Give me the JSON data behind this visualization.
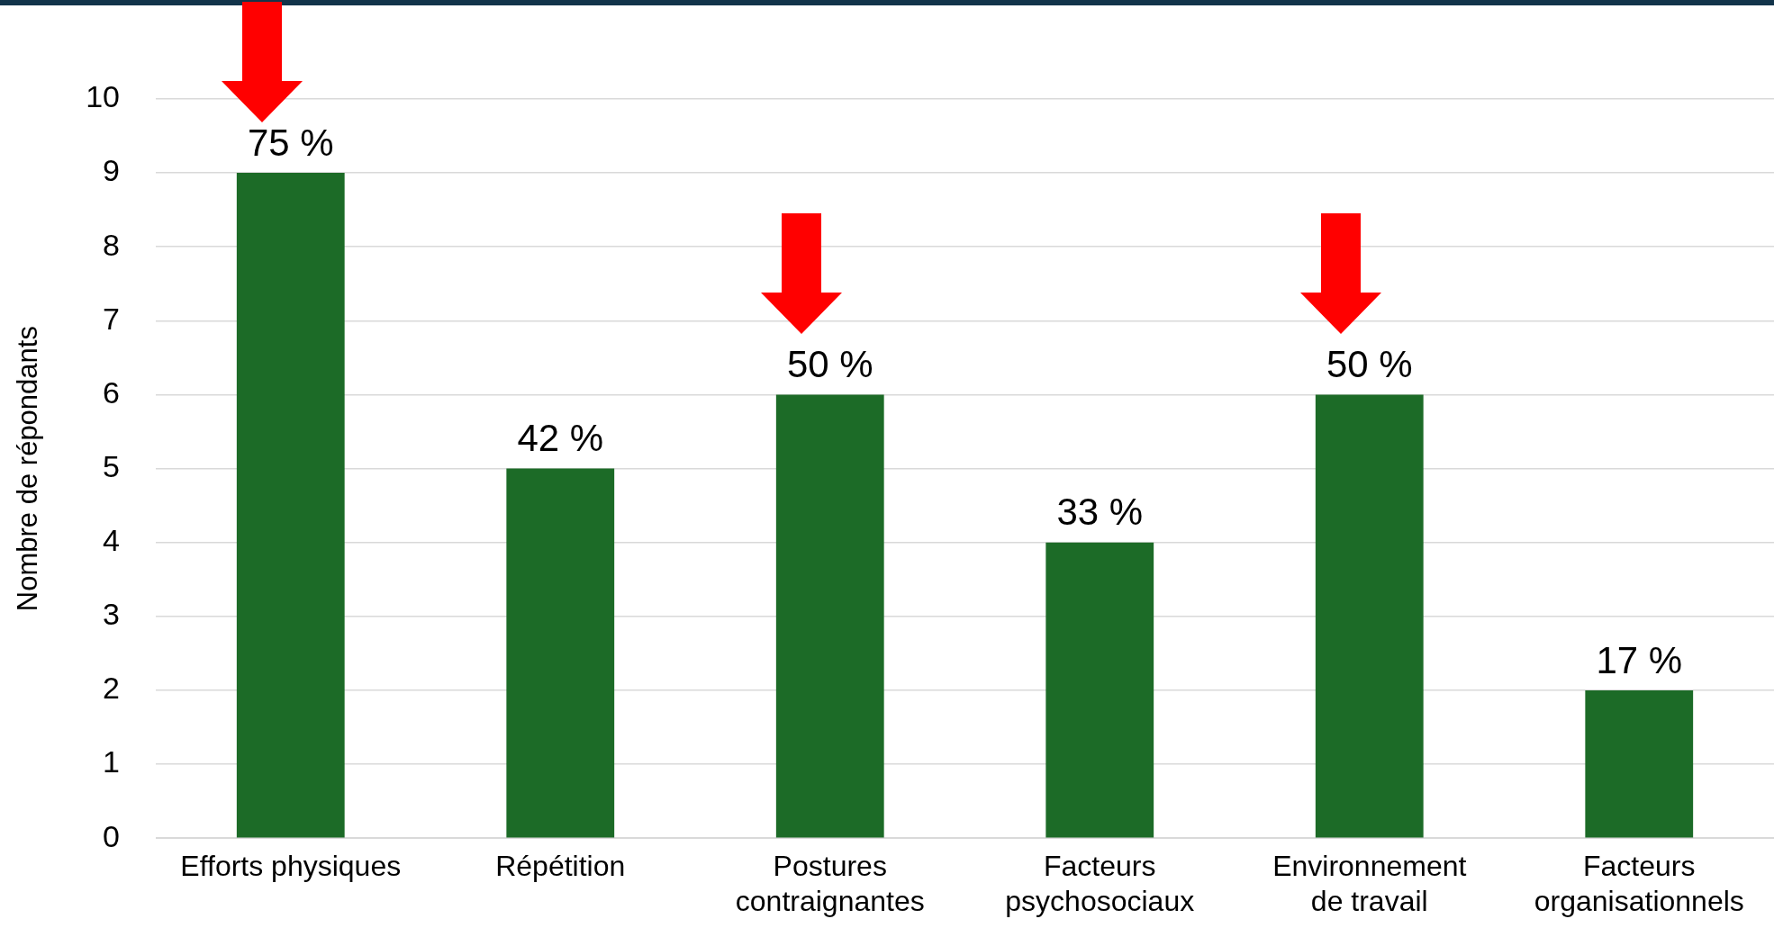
{
  "chart_data": {
    "type": "bar",
    "ylabel": "Nombre de répondants",
    "categories": [
      "Efforts physiques",
      "Répétition",
      "Postures contraignantes",
      "Facteurs psychosociaux",
      "Environnement de travail",
      "Facteurs organisationnels"
    ],
    "values": [
      9,
      5,
      6,
      4,
      6,
      2
    ],
    "annotations": [
      {
        "text": "75 %",
        "x": "Efforts physiques",
        "y": 9
      },
      {
        "text": "42 %",
        "x": "Répétition",
        "y": 5
      },
      {
        "text": "50 %",
        "x": "Postures contraignantes",
        "y": 6
      },
      {
        "text": "33 %",
        "x": "Facteurs psychosociaux",
        "y": 4
      },
      {
        "text": "50 %",
        "x": "Environnement de travail",
        "y": 6
      },
      {
        "text": "17 %",
        "x": "Facteurs organisationnels",
        "y": 2
      }
    ],
    "color": "#1c6b27",
    "ylim": [
      0,
      10
    ],
    "yticks": [
      0,
      1,
      2,
      3,
      4,
      5,
      6,
      7,
      8,
      9,
      10
    ],
    "grid": "y",
    "legend": false
  }
}
